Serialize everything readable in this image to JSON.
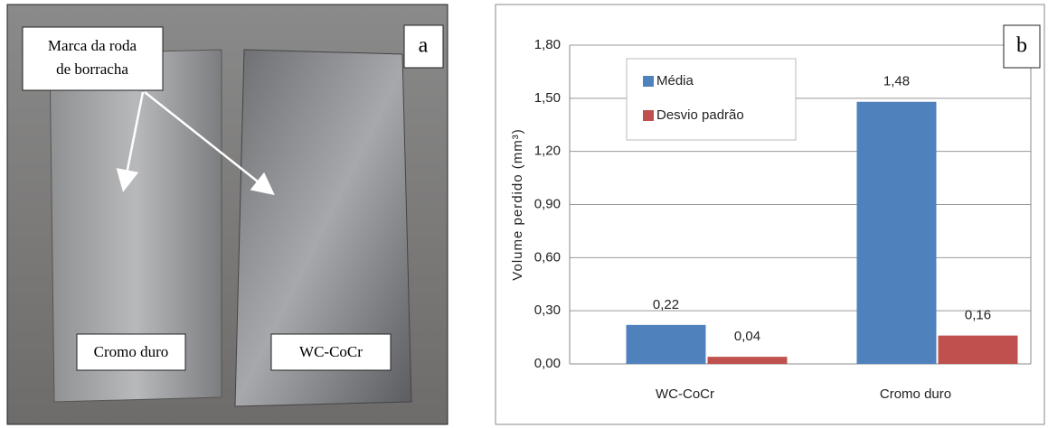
{
  "photo": {
    "panel_label": "a",
    "annotation": [
      "Marca da roda",
      "de borracha"
    ],
    "left_sample": "Cromo duro",
    "right_sample": "WC-CoCr"
  },
  "chart_data": {
    "type": "bar",
    "panel_label": "b",
    "y_label": "Volume perdido (mm³)",
    "categories": [
      "WC-CoCr",
      "Cromo duro"
    ],
    "series": [
      {
        "name": "Média",
        "color": "#4f81bd",
        "values": [
          0.22,
          1.48
        ],
        "value_labels": [
          "0,22",
          "1,48"
        ]
      },
      {
        "name": "Desvio padrão",
        "color": "#c0504d",
        "values": [
          0.04,
          0.16
        ],
        "value_labels": [
          "0,04",
          "0,16"
        ]
      }
    ],
    "ylim": [
      0,
      1.8
    ],
    "yticks": [
      {
        "value": 0,
        "label": "0,00"
      },
      {
        "value": 0.3,
        "label": "0,30"
      },
      {
        "value": 0.6,
        "label": "0,60"
      },
      {
        "value": 0.9,
        "label": "0,90"
      },
      {
        "value": 1.2,
        "label": "1,20"
      },
      {
        "value": 1.5,
        "label": "1,50"
      },
      {
        "value": 1.8,
        "label": "1,80"
      }
    ],
    "grid": true,
    "legend": "top-left"
  }
}
